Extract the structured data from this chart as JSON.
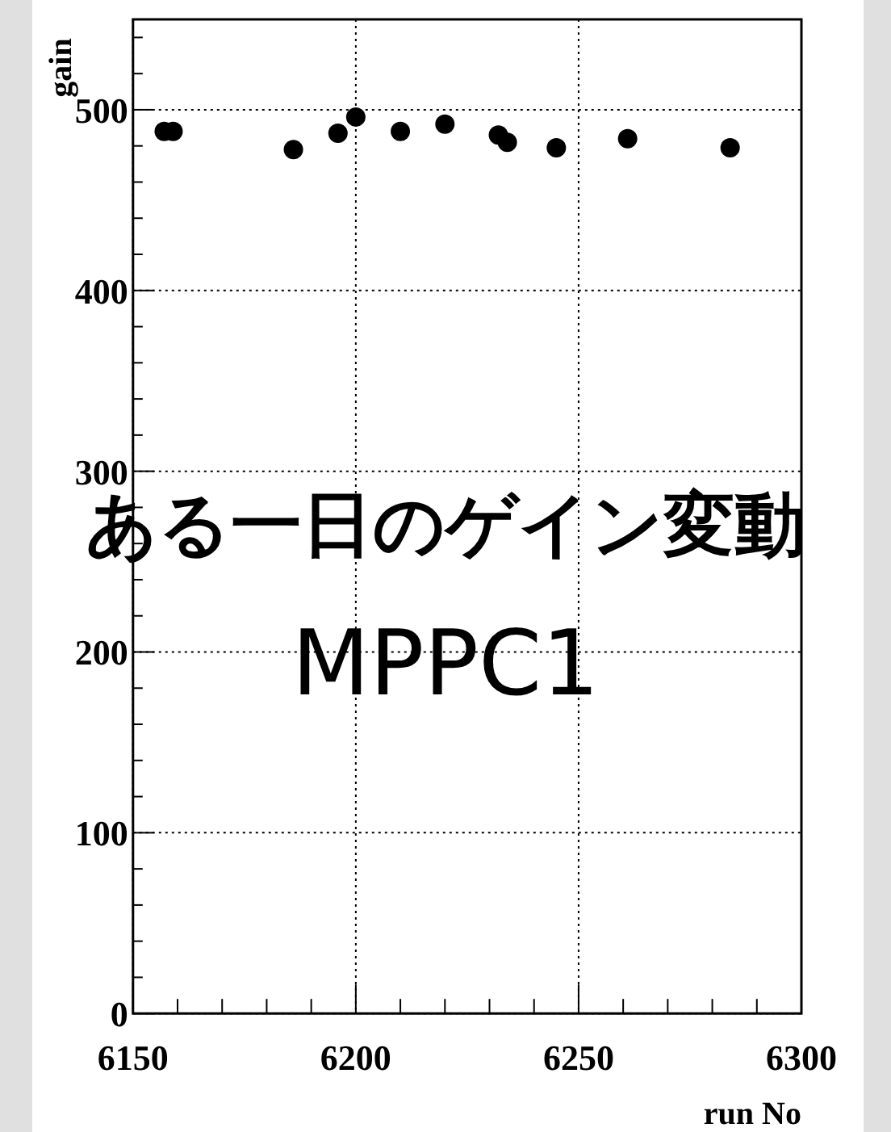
{
  "chart_data": {
    "type": "scatter",
    "title": "ある一日のゲイン変動",
    "subtitle": "MPPC1",
    "xlabel": "run No",
    "ylabel": "gain",
    "x": [
      6157,
      6159,
      6186,
      6196,
      6200,
      6210,
      6220,
      6232,
      6234,
      6245,
      6261,
      6284
    ],
    "series": [
      {
        "color": "#000000",
        "values": [
          488,
          488,
          478,
          487,
          496,
          488,
          492,
          486,
          482,
          479,
          484,
          479
        ]
      }
    ],
    "xlim": [
      6150,
      6300
    ],
    "xticks": [
      6150,
      6200,
      6250,
      6300
    ],
    "ylim": [
      0,
      550
    ],
    "yticks": [
      0,
      100,
      200,
      300,
      400,
      500
    ],
    "grid": true,
    "marker": "circle"
  }
}
